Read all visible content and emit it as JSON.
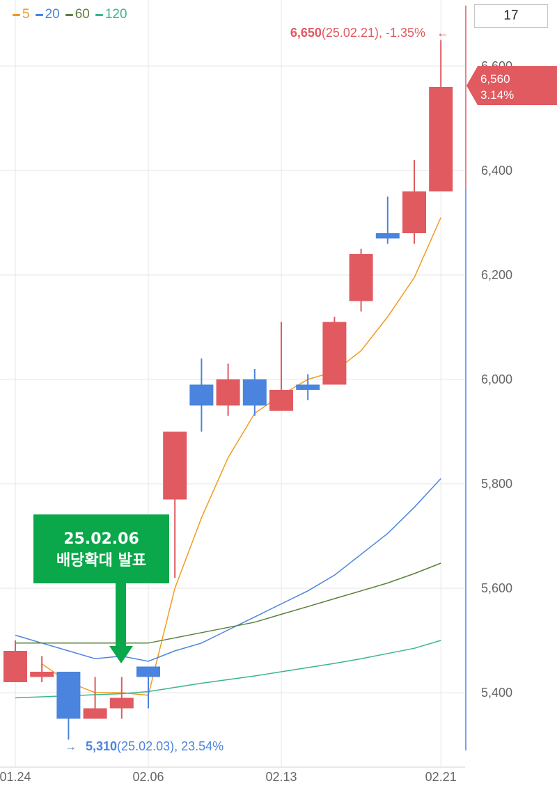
{
  "legend": [
    {
      "label": "5",
      "color": "#f39a1e"
    },
    {
      "label": "20",
      "color": "#4a84de"
    },
    {
      "label": "60",
      "color": "#58803a"
    },
    {
      "label": "120",
      "color": "#3bb58d"
    }
  ],
  "period_selector": {
    "value": "17"
  },
  "current_price": {
    "price": "6,560",
    "change": "3.14%"
  },
  "high_marker": {
    "value": "6,650",
    "detail": "(25.02.21), -1.35%",
    "arrow": "←"
  },
  "low_marker": {
    "value": "5,310",
    "detail": "(25.02.03), 23.54%",
    "arrow": "→"
  },
  "annotation": {
    "date": "25.02.06",
    "text": "배당확대 발표"
  },
  "colors": {
    "up": "#e05a60",
    "down": "#4a84de",
    "grid": "#e6e6e6"
  },
  "chart_data": {
    "type": "candlestick",
    "x_ticks": [
      "01.24",
      "02.06",
      "02.13",
      "02.21"
    ],
    "y_ticks": [
      "5,400",
      "5,600",
      "5,800",
      "6,000",
      "6,200",
      "6,400",
      "6,600"
    ],
    "ylim": [
      5300,
      6700
    ],
    "candles": [
      {
        "open": 5420,
        "high": 5500,
        "low": 5420,
        "close": 5480
      },
      {
        "open": 5430,
        "high": 5470,
        "low": 5420,
        "close": 5440
      },
      {
        "open": 5440,
        "high": 5440,
        "low": 5310,
        "close": 5350
      },
      {
        "open": 5350,
        "high": 5430,
        "low": 5350,
        "close": 5370
      },
      {
        "open": 5370,
        "high": 5430,
        "low": 5350,
        "close": 5390
      },
      {
        "open": 5450,
        "high": 5450,
        "low": 5370,
        "close": 5430
      },
      {
        "open": 5770,
        "high": 5900,
        "low": 5620,
        "close": 5900
      },
      {
        "open": 5990,
        "high": 6040,
        "low": 5900,
        "close": 5950
      },
      {
        "open": 5950,
        "high": 6030,
        "low": 5930,
        "close": 6000
      },
      {
        "open": 6000,
        "high": 6020,
        "low": 5930,
        "close": 5950
      },
      {
        "open": 5940,
        "high": 6110,
        "low": 5940,
        "close": 5980
      },
      {
        "open": 5990,
        "high": 6010,
        "low": 5960,
        "close": 5980
      },
      {
        "open": 5990,
        "high": 6120,
        "low": 5990,
        "close": 6110
      },
      {
        "open": 6150,
        "high": 6250,
        "low": 6130,
        "close": 6240
      },
      {
        "open": 6280,
        "high": 6350,
        "low": 6260,
        "close": 6270
      },
      {
        "open": 6280,
        "high": 6420,
        "low": 6260,
        "close": 6360
      },
      {
        "open": 6360,
        "high": 6650,
        "low": 6360,
        "close": 6560
      }
    ],
    "series": [
      {
        "name": "5",
        "values": [
          null,
          5455,
          5420,
          5400,
          5400,
          5395,
          5600,
          5735,
          5850,
          5935,
          5970,
          6000,
          6015,
          6055,
          6120,
          6195,
          6310
        ]
      },
      {
        "name": "20",
        "values": [
          5510,
          5495,
          5480,
          5465,
          5470,
          5460,
          5480,
          5495,
          5520,
          5545,
          5570,
          5595,
          5625,
          5665,
          5705,
          5755,
          5810
        ]
      },
      {
        "name": "60",
        "values": [
          5495,
          5495,
          5495,
          5495,
          5495,
          5495,
          5505,
          5515,
          5525,
          5535,
          5550,
          5565,
          5580,
          5595,
          5610,
          5628,
          5648
        ]
      },
      {
        "name": "120",
        "values": [
          5390,
          5392,
          5394,
          5396,
          5398,
          5402,
          5410,
          5418,
          5425,
          5432,
          5440,
          5448,
          5456,
          5465,
          5475,
          5485,
          5500
        ]
      }
    ]
  }
}
